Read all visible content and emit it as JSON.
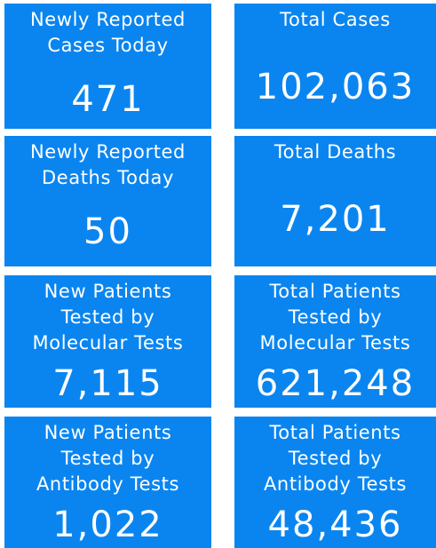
{
  "tiles": [
    {
      "label": "Newly Reported\nCases Today",
      "value": "471"
    },
    {
      "label": "Total Cases",
      "value": "102,063"
    },
    {
      "label": "Newly Reported\nDeaths Today",
      "value": "50"
    },
    {
      "label": "Total Deaths",
      "value": "7,201"
    },
    {
      "label": "New Patients\nTested by\nMolecular Tests",
      "value": "7,115"
    },
    {
      "label": "Total Patients\nTested by\nMolecular Tests",
      "value": "621,248"
    },
    {
      "label": "New Patients\nTested by\nAntibody Tests",
      "value": "1,022"
    },
    {
      "label": "Total Patients\nTested by\nAntibody Tests",
      "value": "48,436"
    }
  ],
  "colors": {
    "tile_background": "#0a85f0",
    "text": "#ffffff",
    "page_background": "#ffffff"
  }
}
